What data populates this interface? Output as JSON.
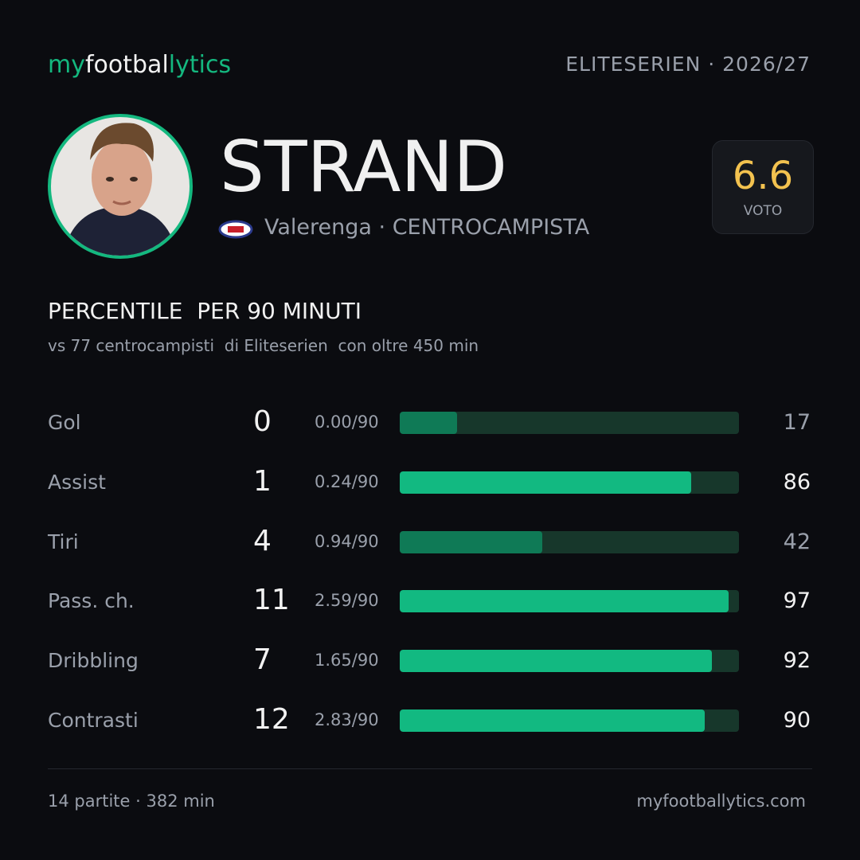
{
  "header": {
    "brand": [
      "my",
      "footbal",
      "lytics"
    ],
    "competition": "ELITESERIEN · 2026/27"
  },
  "player": {
    "name": "STRAND",
    "subtitle": "Valerenga · CENTROCAMPISTA",
    "rating": {
      "value": "6.6",
      "label": "VOTO"
    }
  },
  "section": {
    "title": "PERCENTILE  PER 90 MINUTI",
    "subtitle": "vs 77 centrocampisti  di Eliteserien  con oltre 450 min"
  },
  "rows": [
    {
      "label": "Gol",
      "total": 0,
      "per90": "0.00/90",
      "percentile": 17,
      "color": "#0f7a56"
    },
    {
      "label": "Assist",
      "total": 1,
      "per90": "0.24/90",
      "percentile": 86,
      "color": "#12b981"
    },
    {
      "label": "Tiri",
      "total": 4,
      "per90": "0.94/90",
      "percentile": 42,
      "color": "#0f7a56"
    },
    {
      "label": "Pass. ch.",
      "total": 11,
      "per90": "2.59/90",
      "percentile": 97,
      "color": "#12b981"
    },
    {
      "label": "Dribbling",
      "total": 7,
      "per90": "1.65/90",
      "percentile": 92,
      "color": "#12b981"
    },
    {
      "label": "Contrasti",
      "total": 12,
      "per90": "2.83/90",
      "percentile": 90,
      "color": "#12b981"
    }
  ],
  "footer": {
    "stats": "14 partite · 382 min",
    "site": "myfootballytics.com"
  }
}
